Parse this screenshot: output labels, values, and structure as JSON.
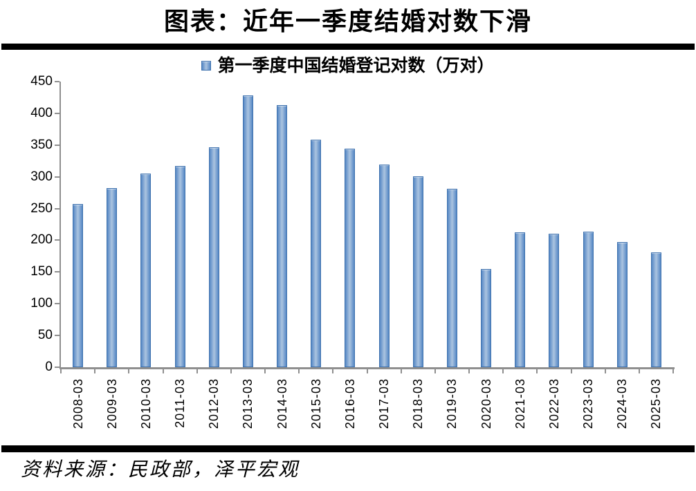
{
  "page": {
    "title": "图表：近年一季度结婚对数下滑",
    "source": "资料来源：民政部，泽平宏观"
  },
  "legend": {
    "label": "第一季度中国结婚登记对数（万对）"
  },
  "chart_data": {
    "type": "bar",
    "title": "图表：近年一季度结婚对数下滑",
    "legend": "第一季度中国结婚登记对数（万对）",
    "legend_position": "top-center",
    "categories": [
      "2008-03",
      "2009-03",
      "2010-03",
      "2011-03",
      "2012-03",
      "2013-03",
      "2014-03",
      "2015-03",
      "2016-03",
      "2017-03",
      "2018-03",
      "2019-03",
      "2020-03",
      "2021-03",
      "2022-03",
      "2023-03",
      "2024-03",
      "2025-03"
    ],
    "values": [
      257,
      282,
      305,
      317,
      346,
      428,
      413,
      359,
      344,
      319,
      301,
      281,
      155,
      213,
      210,
      214,
      197,
      181
    ],
    "xlabel": "",
    "ylabel": "",
    "ylim": [
      0,
      450
    ],
    "ytick_step": 50,
    "grid": false,
    "bar_color": "#4f81bd"
  },
  "colors": {
    "bar_border": "#3f72ae",
    "bar_edge": "#5688c5",
    "bar_center": "#abc4e0",
    "axis": "#8f8f8f",
    "rule": "#000000",
    "text": "#000000"
  }
}
